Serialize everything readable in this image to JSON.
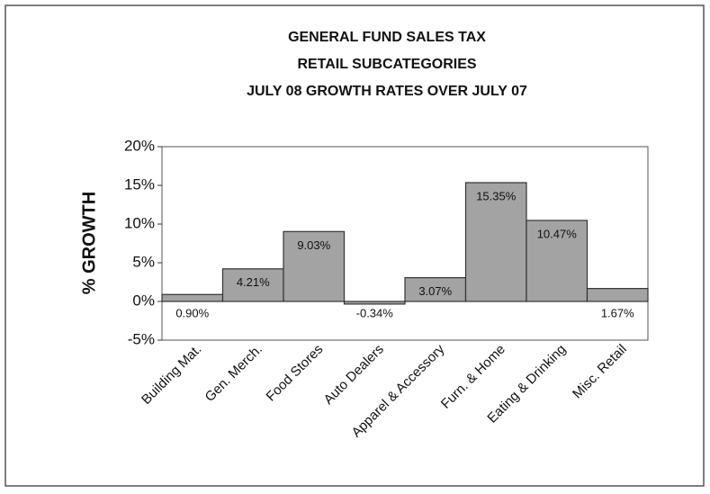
{
  "chart_data": {
    "type": "bar",
    "title": [
      "GENERAL FUND SALES TAX",
      "RETAIL SUBCATEGORIES",
      "JULY 08 GROWTH RATES OVER JULY 07"
    ],
    "y_label": "% GROWTH",
    "categories": [
      "Building Mat.",
      "Gen. Merch.",
      "Food Stores",
      "Auto Dealers",
      "Apparel & Accessory",
      "Furn. & Home",
      "Eating & Drinking",
      "Misc. Retail"
    ],
    "values": [
      0.9,
      4.21,
      9.03,
      -0.34,
      3.07,
      15.35,
      10.47,
      1.67
    ],
    "value_labels": [
      "0.90%",
      "4.21%",
      "9.03%",
      "-0.34%",
      "3.07%",
      "15.35%",
      "10.47%",
      "1.67%"
    ],
    "color": "#a3a3a3",
    "ylim": [
      -5,
      20
    ],
    "yticks": [
      {
        "value": -5,
        "label": "-5%"
      },
      {
        "value": 0,
        "label": "0%"
      },
      {
        "value": 5,
        "label": "5%"
      },
      {
        "value": 10,
        "label": "10%"
      },
      {
        "value": 15,
        "label": "15%"
      },
      {
        "value": 20,
        "label": "20%"
      }
    ],
    "grid": false
  }
}
